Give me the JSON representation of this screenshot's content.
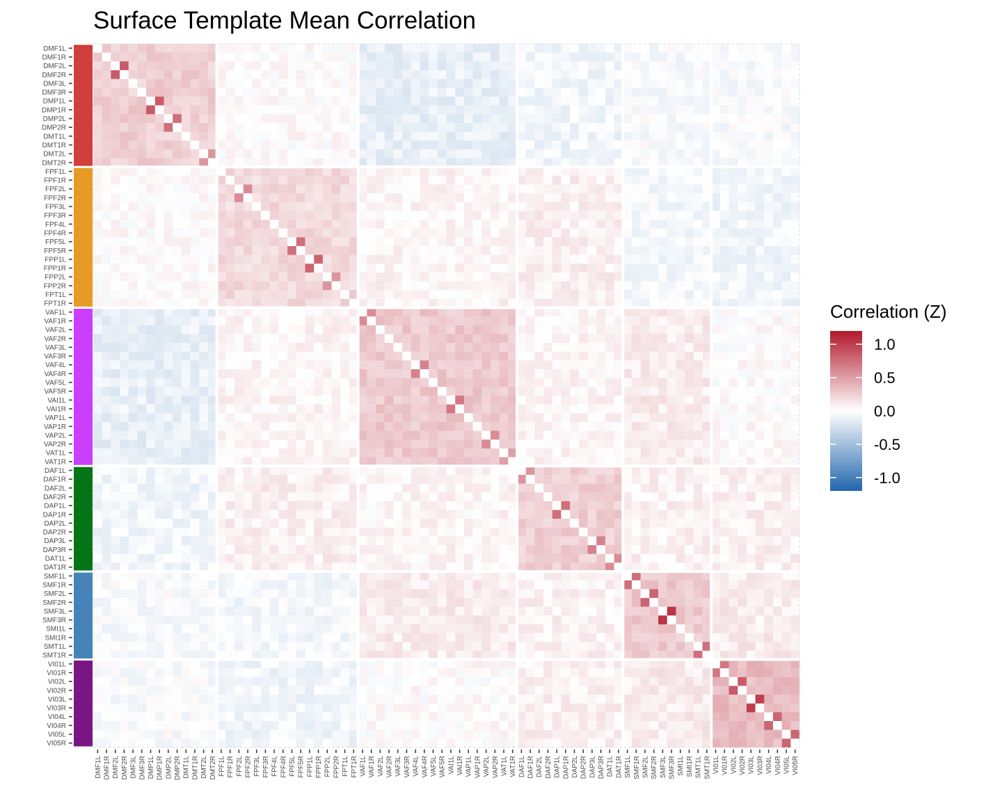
{
  "chart_data": {
    "type": "heatmap",
    "title": "Surface Template Mean Correlation",
    "xlabel": "",
    "ylabel": "",
    "diagonal": "blank",
    "symmetric": true,
    "legend": {
      "title": "Correlation (Z)",
      "position": "right",
      "ticks": [
        1.0,
        0.5,
        0.0,
        -0.5,
        -1.0
      ],
      "tick_labels": [
        "1.0",
        "0.5",
        "0.0",
        "-0.5",
        "-1.0"
      ]
    },
    "color_scale": {
      "min": -1.2,
      "mid": 0.0,
      "max": 1.2,
      "low_color": "#2166ac",
      "mid_color": "#ffffff",
      "high_color": "#b2182b"
    },
    "labels": [
      "DMF1L",
      "DMF1R",
      "DMF2L",
      "DMF2R",
      "DMF3L",
      "DMF3R",
      "DMP1L",
      "DMP1R",
      "DMP2L",
      "DMP2R",
      "DMT1L",
      "DMT1R",
      "DMT2L",
      "DMT2R",
      "FPF1L",
      "FPF1R",
      "FPF2L",
      "FPF2R",
      "FPF3L",
      "FPF3R",
      "FPF4L",
      "FPF4R",
      "FPF5L",
      "FPF5R",
      "FPP1L",
      "FPP1R",
      "FPP2L",
      "FPP2R",
      "FPT1L",
      "FPT1R",
      "VAF1L",
      "VAF1R",
      "VAF2L",
      "VAF2R",
      "VAF3L",
      "VAF3R",
      "VAF4L",
      "VAF4R",
      "VAF5L",
      "VAF5R",
      "VAI1L",
      "VAI1R",
      "VAP1L",
      "VAP1R",
      "VAP2L",
      "VAP2R",
      "VAT1L",
      "VAT1R",
      "DAF1L",
      "DAF1R",
      "DAF2L",
      "DAF2R",
      "DAP1L",
      "DAP1R",
      "DAP2L",
      "DAP2R",
      "DAP3L",
      "DAP3R",
      "DAT1L",
      "DAT1R",
      "SMF1L",
      "SMF1R",
      "SMF2L",
      "SMF2R",
      "SMF3L",
      "SMF3R",
      "SMI1L",
      "SMI1R",
      "SMT1L",
      "SMT1R",
      "VI01L",
      "VI01R",
      "VI02L",
      "VI02R",
      "VI03L",
      "VI03R",
      "VI04L",
      "VI04R",
      "VI05L",
      "VI05R"
    ],
    "networks": [
      {
        "name": "DM",
        "count": 14,
        "color": "#d03f3b"
      },
      {
        "name": "FP",
        "count": 16,
        "color": "#e89b24"
      },
      {
        "name": "VA",
        "count": 18,
        "color": "#c93ffc"
      },
      {
        "name": "DA",
        "count": 12,
        "color": "#037516"
      },
      {
        "name": "SM",
        "count": 10,
        "color": "#4583b8"
      },
      {
        "name": "VI",
        "count": 10,
        "color": "#7a1684"
      }
    ],
    "block_means": [
      [
        0.25,
        0.02,
        -0.12,
        -0.07,
        -0.03,
        -0.03
      ],
      [
        0.02,
        0.2,
        0.05,
        0.08,
        -0.05,
        -0.07
      ],
      [
        -0.12,
        0.05,
        0.28,
        0.05,
        0.1,
        0.02
      ],
      [
        -0.07,
        0.08,
        0.05,
        0.25,
        0.07,
        0.08
      ],
      [
        -0.03,
        -0.05,
        0.1,
        0.07,
        0.28,
        0.1
      ],
      [
        -0.03,
        -0.07,
        0.02,
        0.08,
        0.1,
        0.35
      ]
    ],
    "strong_pairs": [
      [
        "DMF2L",
        "DMF2R",
        0.85
      ],
      [
        "DMP1L",
        "DMP1R",
        0.85
      ],
      [
        "DMP2L",
        "DMP2R",
        0.75
      ],
      [
        "DMT2L",
        "DMT2R",
        0.55
      ],
      [
        "FPF5L",
        "FPF5R",
        0.75
      ],
      [
        "FPP1L",
        "FPP1R",
        0.8
      ],
      [
        "FPF2L",
        "FPF2R",
        0.6
      ],
      [
        "FPP2L",
        "FPP2R",
        0.55
      ],
      [
        "VAF1L",
        "VAF1R",
        0.6
      ],
      [
        "VAI1L",
        "VAI1R",
        0.7
      ],
      [
        "VAF4L",
        "VAF4R",
        0.65
      ],
      [
        "VAP2L",
        "VAP2R",
        0.6
      ],
      [
        "VAT1L",
        "VAT1R",
        0.5
      ],
      [
        "DAF1L",
        "DAF1R",
        0.55
      ],
      [
        "DAP1L",
        "DAP1R",
        0.75
      ],
      [
        "DAP3L",
        "DAP3R",
        0.65
      ],
      [
        "DAT1L",
        "DAT1R",
        0.6
      ],
      [
        "SMF1L",
        "SMF1R",
        0.75
      ],
      [
        "SMF2L",
        "SMF2R",
        0.8
      ],
      [
        "SMF3L",
        "SMF3R",
        1.05
      ],
      [
        "SMT1L",
        "SMT1R",
        0.75
      ],
      [
        "VI01L",
        "VI01R",
        0.7
      ],
      [
        "VI02L",
        "VI02R",
        0.85
      ],
      [
        "VI03L",
        "VI03R",
        1.0
      ],
      [
        "VI04L",
        "VI04R",
        0.8
      ],
      [
        "VI05L",
        "VI05R",
        0.8
      ]
    ]
  }
}
